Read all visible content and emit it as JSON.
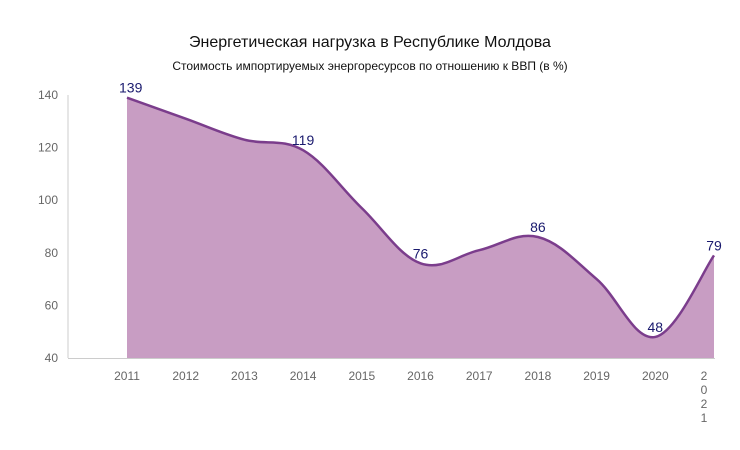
{
  "chart_data": {
    "type": "area",
    "title": "Энергетическая нагрузка в Республике Молдова",
    "subtitle": "Стоимость импортируемых энергоресурсов по отношению к ВВП (в %)",
    "xlabel": "",
    "ylabel": "",
    "categories": [
      "2011",
      "2012",
      "2013",
      "2014",
      "2015",
      "2016",
      "2017",
      "2018",
      "2019",
      "2020",
      "2021"
    ],
    "values": [
      139,
      131,
      123,
      119,
      97,
      76,
      81,
      86,
      70,
      48,
      79
    ],
    "data_labels": [
      {
        "index": 0,
        "text": "139"
      },
      {
        "index": 3,
        "text": "119"
      },
      {
        "index": 5,
        "text": "76"
      },
      {
        "index": 7,
        "text": "86"
      },
      {
        "index": 9,
        "text": "48"
      },
      {
        "index": 10,
        "text": "79"
      }
    ],
    "yticks": [
      "40",
      "60",
      "80",
      "100",
      "120",
      "140"
    ],
    "ylim": [
      40,
      140
    ],
    "grid": false,
    "legend": "none",
    "colors": {
      "fill": "#c89dc3",
      "line": "#7b3d8c",
      "label": "#1a1a6e",
      "axis": "#cccccc",
      "tick": "#666666"
    }
  }
}
